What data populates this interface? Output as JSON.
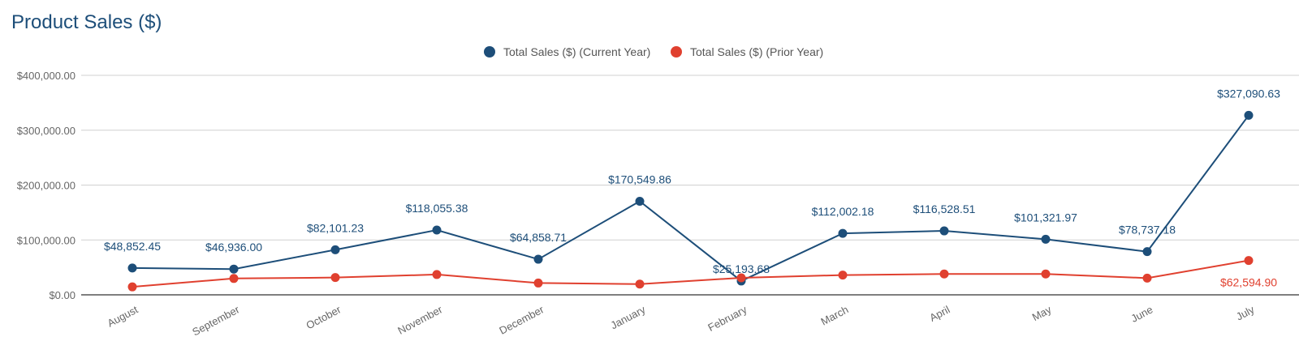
{
  "chart_data": {
    "type": "line",
    "title": "Product Sales ($)",
    "categories": [
      "August",
      "September",
      "October",
      "November",
      "December",
      "January",
      "February",
      "March",
      "April",
      "May",
      "June",
      "July"
    ],
    "ylim": [
      0,
      400000
    ],
    "yticks": [
      "$0.00",
      "$100,000.00",
      "$200,000.00",
      "$300,000.00",
      "$400,000.00"
    ],
    "ytick_values": [
      0,
      100000,
      200000,
      300000,
      400000
    ],
    "grid": true,
    "legend_position": "top-center",
    "series": [
      {
        "name": "Total Sales ($) (Current Year)",
        "color": "#1d4e79",
        "values": [
          48852.45,
          46936.0,
          82101.23,
          118055.38,
          64858.71,
          170549.86,
          25193.68,
          112002.18,
          116528.51,
          101321.97,
          78737.18,
          327090.63
        ],
        "labels": [
          "$48,852.45",
          "$46,936.00",
          "$82,101.23",
          "$118,055.38",
          "$64,858.71",
          "$170,549.86",
          "$25,193.68",
          "$112,002.18",
          "$116,528.51",
          "$101,321.97",
          "$78,737.18",
          "$327,090.63"
        ]
      },
      {
        "name": "Total Sales ($) (Prior Year)",
        "color": "#e0402f",
        "values": [
          14500,
          29800,
          31500,
          37000,
          21500,
          19500,
          31000,
          36000,
          38000,
          38000,
          30500,
          62594.9
        ],
        "labels": [
          "",
          "",
          "",
          "",
          "",
          "",
          "",
          "",
          "",
          "",
          "",
          "$62,594.90"
        ]
      }
    ]
  }
}
